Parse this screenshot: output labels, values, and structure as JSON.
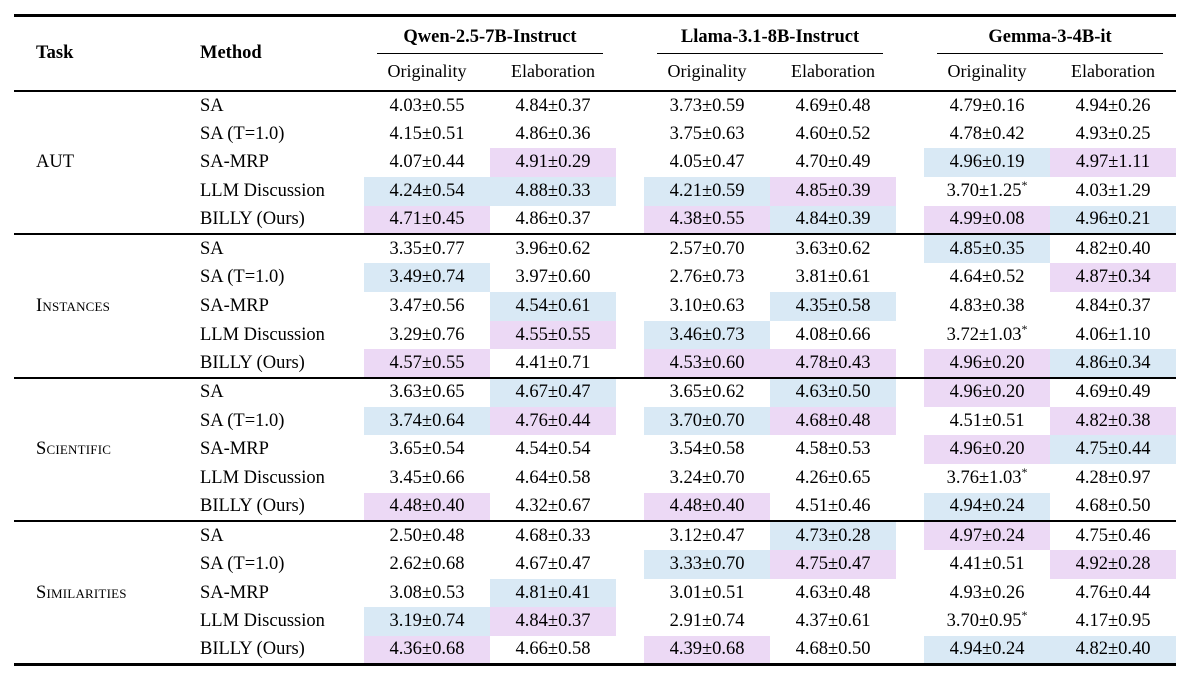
{
  "header": {
    "task": "Task",
    "method": "Method"
  },
  "groups": [
    {
      "name": "Qwen-2.5-7B-Instruct",
      "sub": [
        "Originality",
        "Elaboration"
      ]
    },
    {
      "name": "Llama-3.1-8B-Instruct",
      "sub": [
        "Originality",
        "Elaboration"
      ]
    },
    {
      "name": "Gemma-3-4B-it",
      "sub": [
        "Originality",
        "Elaboration"
      ]
    }
  ],
  "highlight_colors": {
    "blue": "#d9e9f5",
    "purple": "#ecd9f5"
  },
  "footnote_marker": "*",
  "tasks": [
    {
      "name": "AUT",
      "smallcaps": false,
      "rows": [
        {
          "method": "SA",
          "cells": [
            {
              "v": "4.03±0.55"
            },
            {
              "v": "4.84±0.37"
            },
            {
              "v": "3.73±0.59"
            },
            {
              "v": "4.69±0.48"
            },
            {
              "v": "4.79±0.16"
            },
            {
              "v": "4.94±0.26"
            }
          ]
        },
        {
          "method": "SA (T=1.0)",
          "cells": [
            {
              "v": "4.15±0.51"
            },
            {
              "v": "4.86±0.36"
            },
            {
              "v": "3.75±0.63"
            },
            {
              "v": "4.60±0.52"
            },
            {
              "v": "4.78±0.42"
            },
            {
              "v": "4.93±0.25"
            }
          ]
        },
        {
          "method": "SA-MRP",
          "cells": [
            {
              "v": "4.07±0.44"
            },
            {
              "v": "4.91±0.29",
              "h": "purple"
            },
            {
              "v": "4.05±0.47"
            },
            {
              "v": "4.70±0.49"
            },
            {
              "v": "4.96±0.19",
              "h": "blue"
            },
            {
              "v": "4.97±1.11",
              "h": "purple"
            }
          ]
        },
        {
          "method": "LLM Discussion",
          "cells": [
            {
              "v": "4.24±0.54",
              "h": "blue"
            },
            {
              "v": "4.88±0.33",
              "h": "blue"
            },
            {
              "v": "4.21±0.59",
              "h": "blue"
            },
            {
              "v": "4.85±0.39",
              "h": "purple"
            },
            {
              "v": "3.70±1.25",
              "star": true
            },
            {
              "v": "4.03±1.29"
            }
          ]
        },
        {
          "method": "BILLY (Ours)",
          "cells": [
            {
              "v": "4.71±0.45",
              "h": "purple"
            },
            {
              "v": "4.86±0.37"
            },
            {
              "v": "4.38±0.55",
              "h": "purple"
            },
            {
              "v": "4.84±0.39",
              "h": "blue"
            },
            {
              "v": "4.99±0.08",
              "h": "purple"
            },
            {
              "v": "4.96±0.21",
              "h": "blue"
            }
          ]
        }
      ]
    },
    {
      "name": "Instances",
      "smallcaps": true,
      "rows": [
        {
          "method": "SA",
          "cells": [
            {
              "v": "3.35±0.77"
            },
            {
              "v": "3.96±0.62"
            },
            {
              "v": "2.57±0.70"
            },
            {
              "v": "3.63±0.62"
            },
            {
              "v": "4.85±0.35",
              "h": "blue"
            },
            {
              "v": "4.82±0.40"
            }
          ]
        },
        {
          "method": "SA (T=1.0)",
          "cells": [
            {
              "v": "3.49±0.74",
              "h": "blue"
            },
            {
              "v": "3.97±0.60"
            },
            {
              "v": "2.76±0.73"
            },
            {
              "v": "3.81±0.61"
            },
            {
              "v": "4.64±0.52"
            },
            {
              "v": "4.87±0.34",
              "h": "purple"
            }
          ]
        },
        {
          "method": "SA-MRP",
          "cells": [
            {
              "v": "3.47±0.56"
            },
            {
              "v": "4.54±0.61",
              "h": "blue"
            },
            {
              "v": "3.10±0.63"
            },
            {
              "v": "4.35±0.58",
              "h": "blue"
            },
            {
              "v": "4.83±0.38"
            },
            {
              "v": "4.84±0.37"
            }
          ]
        },
        {
          "method": "LLM Discussion",
          "cells": [
            {
              "v": "3.29±0.76"
            },
            {
              "v": "4.55±0.55",
              "h": "purple"
            },
            {
              "v": "3.46±0.73",
              "h": "blue"
            },
            {
              "v": "4.08±0.66"
            },
            {
              "v": "3.72±1.03",
              "star": true
            },
            {
              "v": "4.06±1.10"
            }
          ]
        },
        {
          "method": "BILLY (Ours)",
          "cells": [
            {
              "v": "4.57±0.55",
              "h": "purple"
            },
            {
              "v": "4.41±0.71"
            },
            {
              "v": "4.53±0.60",
              "h": "purple"
            },
            {
              "v": "4.78±0.43",
              "h": "purple"
            },
            {
              "v": "4.96±0.20",
              "h": "purple"
            },
            {
              "v": "4.86±0.34",
              "h": "blue"
            }
          ]
        }
      ]
    },
    {
      "name": "Scientific",
      "smallcaps": true,
      "rows": [
        {
          "method": "SA",
          "cells": [
            {
              "v": "3.63±0.65"
            },
            {
              "v": "4.67±0.47",
              "h": "blue"
            },
            {
              "v": "3.65±0.62"
            },
            {
              "v": "4.63±0.50",
              "h": "blue"
            },
            {
              "v": "4.96±0.20",
              "h": "purple"
            },
            {
              "v": "4.69±0.49"
            }
          ]
        },
        {
          "method": "SA (T=1.0)",
          "cells": [
            {
              "v": "3.74±0.64",
              "h": "blue"
            },
            {
              "v": "4.76±0.44",
              "h": "purple"
            },
            {
              "v": "3.70±0.70",
              "h": "blue"
            },
            {
              "v": "4.68±0.48",
              "h": "purple"
            },
            {
              "v": "4.51±0.51"
            },
            {
              "v": "4.82±0.38",
              "h": "purple"
            }
          ]
        },
        {
          "method": "SA-MRP",
          "cells": [
            {
              "v": "3.65±0.54"
            },
            {
              "v": "4.54±0.54"
            },
            {
              "v": "3.54±0.58"
            },
            {
              "v": "4.58±0.53"
            },
            {
              "v": "4.96±0.20",
              "h": "purple"
            },
            {
              "v": "4.75±0.44",
              "h": "blue"
            }
          ]
        },
        {
          "method": "LLM Discussion",
          "cells": [
            {
              "v": "3.45±0.66"
            },
            {
              "v": "4.64±0.58"
            },
            {
              "v": "3.24±0.70"
            },
            {
              "v": "4.26±0.65"
            },
            {
              "v": "3.76±1.03",
              "star": true
            },
            {
              "v": "4.28±0.97"
            }
          ]
        },
        {
          "method": "BILLY (Ours)",
          "cells": [
            {
              "v": "4.48±0.40",
              "h": "purple"
            },
            {
              "v": "4.32±0.67"
            },
            {
              "v": "4.48±0.40",
              "h": "purple"
            },
            {
              "v": "4.51±0.46"
            },
            {
              "v": "4.94±0.24",
              "h": "blue"
            },
            {
              "v": "4.68±0.50"
            }
          ]
        }
      ]
    },
    {
      "name": "Similarities",
      "smallcaps": true,
      "rows": [
        {
          "method": "SA",
          "cells": [
            {
              "v": "2.50±0.48"
            },
            {
              "v": "4.68±0.33"
            },
            {
              "v": "3.12±0.47"
            },
            {
              "v": "4.73±0.28",
              "h": "blue"
            },
            {
              "v": "4.97±0.24",
              "h": "purple"
            },
            {
              "v": "4.75±0.46"
            }
          ]
        },
        {
          "method": "SA (T=1.0)",
          "cells": [
            {
              "v": "2.62±0.68"
            },
            {
              "v": "4.67±0.47"
            },
            {
              "v": "3.33±0.70",
              "h": "blue"
            },
            {
              "v": "4.75±0.47",
              "h": "purple"
            },
            {
              "v": "4.41±0.51"
            },
            {
              "v": "4.92±0.28",
              "h": "purple"
            }
          ]
        },
        {
          "method": "SA-MRP",
          "cells": [
            {
              "v": "3.08±0.53"
            },
            {
              "v": "4.81±0.41",
              "h": "blue"
            },
            {
              "v": "3.01±0.51"
            },
            {
              "v": "4.63±0.48"
            },
            {
              "v": "4.93±0.26"
            },
            {
              "v": "4.76±0.44"
            }
          ]
        },
        {
          "method": "LLM Discussion",
          "cells": [
            {
              "v": "3.19±0.74",
              "h": "blue"
            },
            {
              "v": "4.84±0.37",
              "h": "purple"
            },
            {
              "v": "2.91±0.74"
            },
            {
              "v": "4.37±0.61"
            },
            {
              "v": "3.70±0.95",
              "star": true
            },
            {
              "v": "4.17±0.95"
            }
          ]
        },
        {
          "method": "BILLY (Ours)",
          "cells": [
            {
              "v": "4.36±0.68",
              "h": "purple"
            },
            {
              "v": "4.66±0.58"
            },
            {
              "v": "4.39±0.68",
              "h": "purple"
            },
            {
              "v": "4.68±0.50"
            },
            {
              "v": "4.94±0.24",
              "h": "blue"
            },
            {
              "v": "4.82±0.40",
              "h": "blue"
            }
          ]
        }
      ]
    }
  ]
}
